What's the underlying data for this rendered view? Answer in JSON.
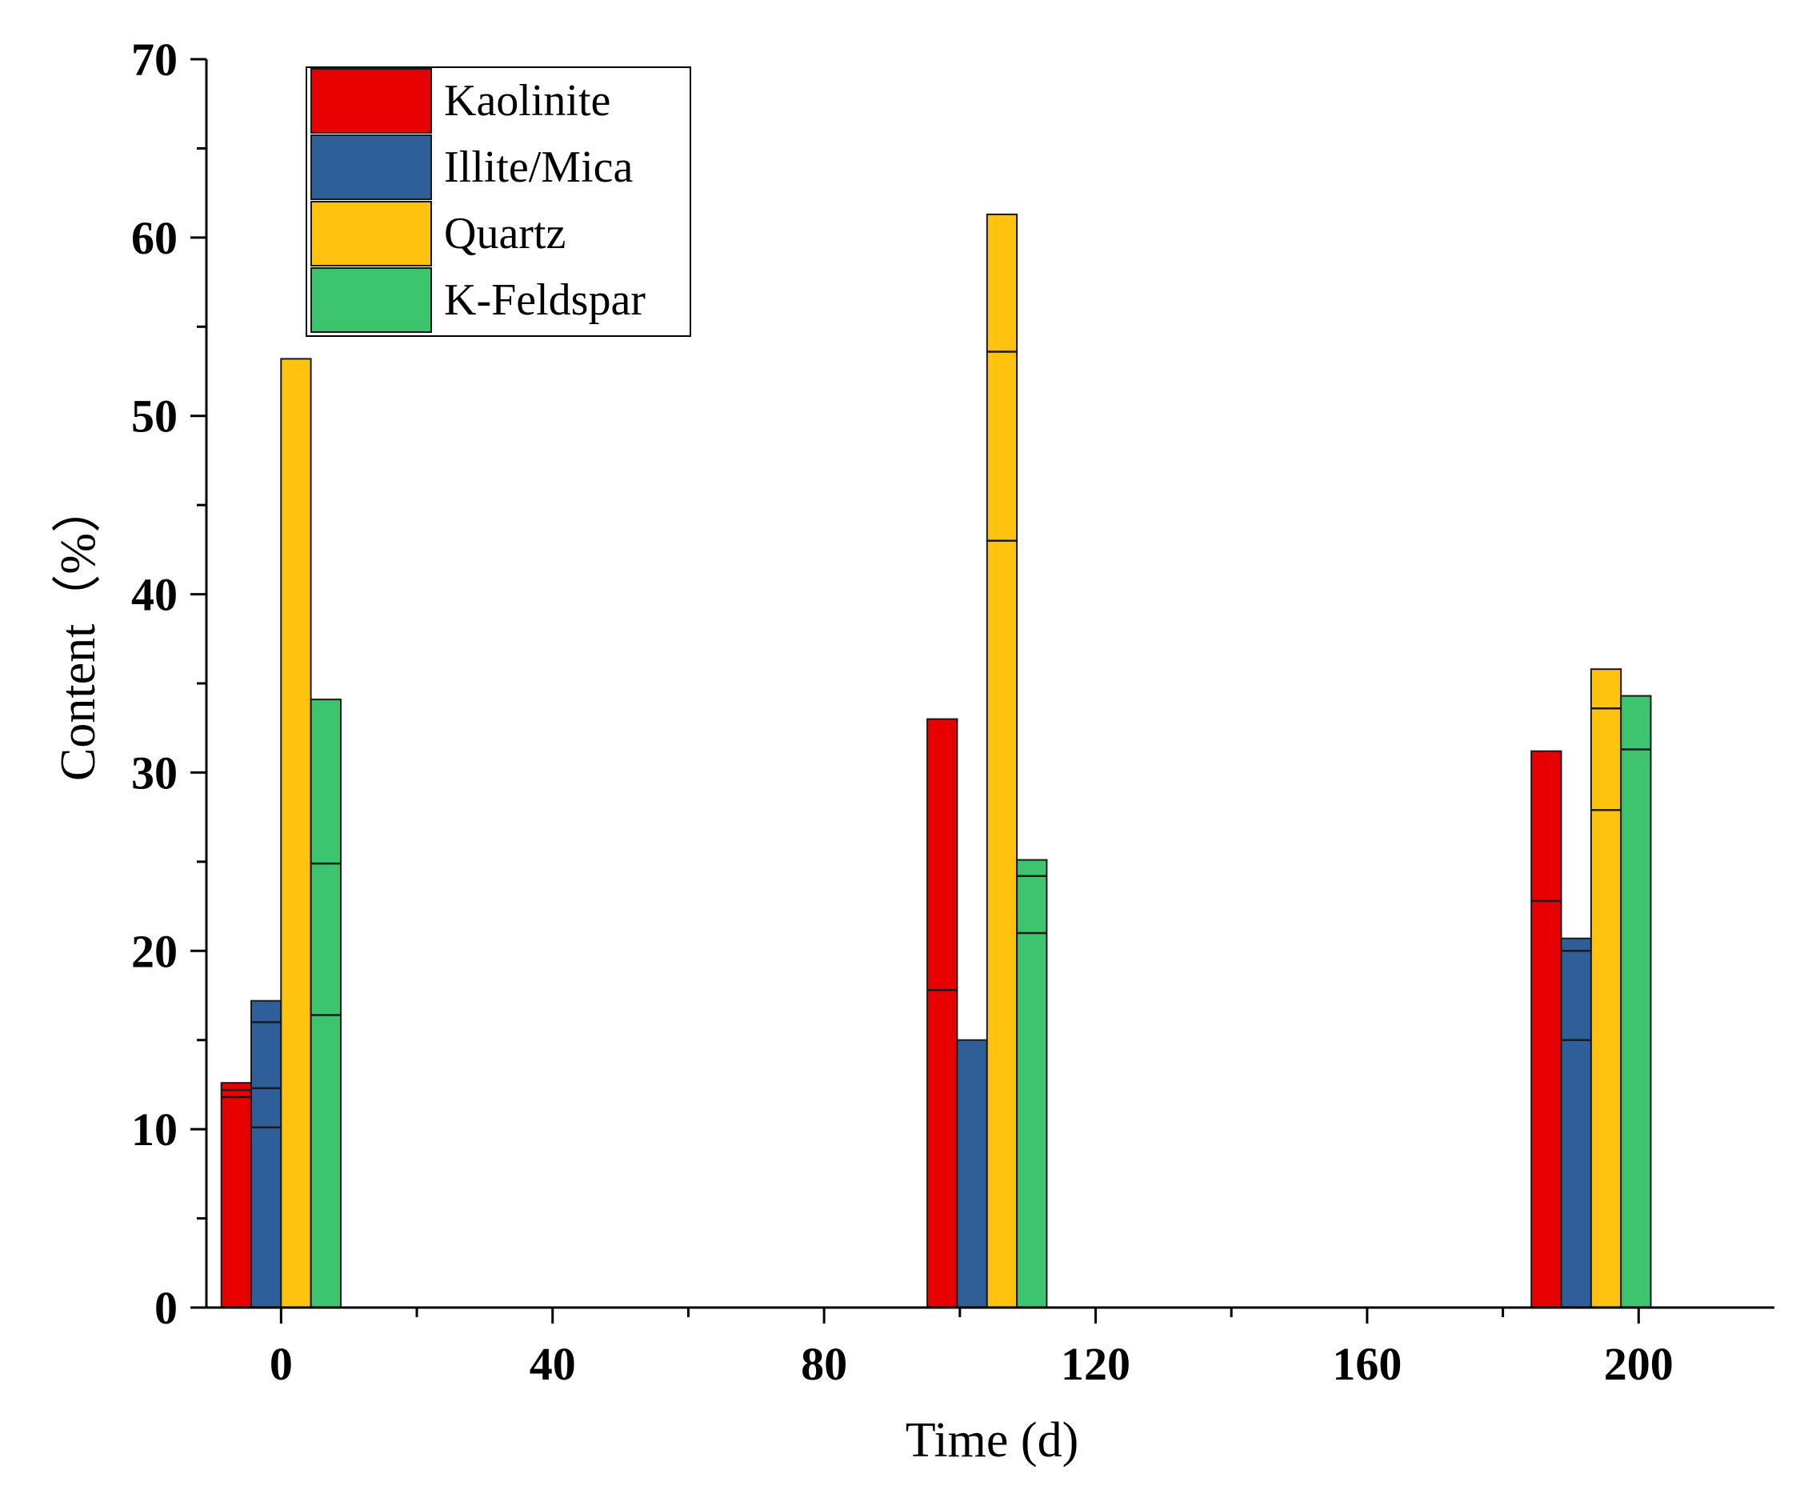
{
  "chart_data": {
    "type": "bar",
    "title": "",
    "xlabel": "Time (d)",
    "ylabel": "Content（%）",
    "xlim": [
      -11,
      220
    ],
    "ylim": [
      0,
      70
    ],
    "xticks": [
      "0",
      "40",
      "80",
      "120",
      "160",
      "200"
    ],
    "xtick_values": [
      0,
      40,
      80,
      120,
      160,
      200
    ],
    "yticks": [
      "0",
      "10",
      "20",
      "30",
      "40",
      "50",
      "60",
      "70"
    ],
    "ytick_values": [
      0,
      10,
      20,
      30,
      40,
      50,
      60,
      70
    ],
    "x": [
      0,
      104,
      193
    ],
    "bar_width_days": 4.4,
    "legend_position": "top-left",
    "series": [
      {
        "name": "Kaolinite",
        "color": "#e60000",
        "values": [
          12.6,
          33.0,
          31.2
        ],
        "internal_lines": [
          [
            11.8,
            12.2
          ],
          [
            17.8
          ],
          [
            22.8
          ]
        ]
      },
      {
        "name": "Illite/Mica",
        "color": "#2e5f99",
        "values": [
          17.2,
          15.0,
          20.7
        ],
        "internal_lines": [
          [
            10.1,
            12.3,
            16.0
          ],
          [],
          [
            15.0,
            20.0
          ]
        ]
      },
      {
        "name": "Quartz",
        "color": "#ffc20e",
        "values": [
          53.2,
          61.3,
          35.8
        ],
        "internal_lines": [
          [],
          [
            43.0,
            53.6
          ],
          [
            27.9,
            33.6
          ]
        ]
      },
      {
        "name": "K-Feldspar",
        "color": "#3cc46e",
        "values": [
          34.1,
          25.1,
          34.3
        ],
        "internal_lines": [
          [
            16.4,
            24.9
          ],
          [
            21.0,
            24.2
          ],
          [
            31.3
          ]
        ]
      }
    ]
  }
}
